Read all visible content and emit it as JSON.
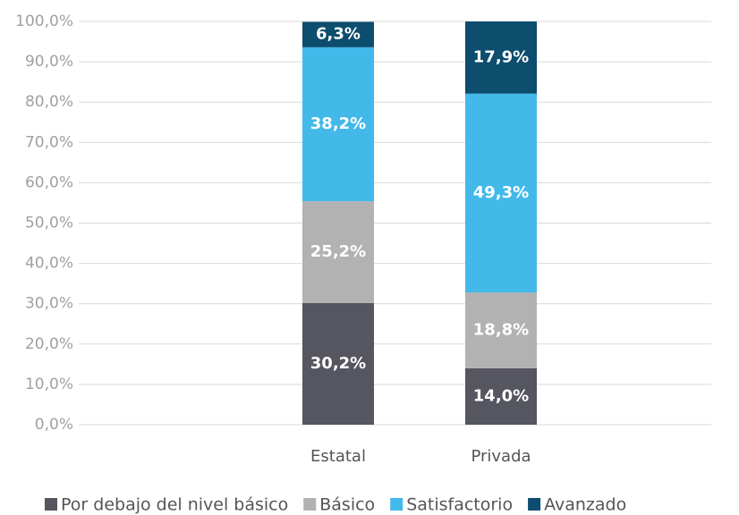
{
  "chart_data": {
    "type": "bar",
    "stacked": true,
    "categories": [
      "Estatal",
      "Privada"
    ],
    "series": [
      {
        "name": "Por debajo del nivel básico",
        "color": "#55565f",
        "values": [
          30.2,
          14.0
        ],
        "value_labels": [
          "30,2%",
          "14,0%"
        ]
      },
      {
        "name": "Básico",
        "color": "#b2b2b2",
        "values": [
          25.2,
          18.8
        ],
        "value_labels": [
          "25,2%",
          "18,8%"
        ]
      },
      {
        "name": "Satisfactorio",
        "color": "#43b9e9",
        "values": [
          38.2,
          49.3
        ],
        "value_labels": [
          "38,2%",
          "49,3%"
        ]
      },
      {
        "name": "Avanzado",
        "color": "#0d4d6e",
        "values": [
          6.3,
          17.9
        ],
        "value_labels": [
          "6,3%",
          "17,9%"
        ]
      }
    ],
    "ylim": [
      0,
      100
    ],
    "yticks": [
      {
        "value": 0,
        "label": "0,0%"
      },
      {
        "value": 10,
        "label": "10,0%"
      },
      {
        "value": 20,
        "label": "20,0%"
      },
      {
        "value": 30,
        "label": "30,0%"
      },
      {
        "value": 40,
        "label": "40,0%"
      },
      {
        "value": 50,
        "label": "50,0%"
      },
      {
        "value": 60,
        "label": "60,0%"
      },
      {
        "value": 70,
        "label": "70,0%"
      },
      {
        "value": 80,
        "label": "80,0%"
      },
      {
        "value": 90,
        "label": "90,0%"
      },
      {
        "value": 100,
        "label": "100,0%"
      }
    ],
    "grid": true,
    "legend": "bottom"
  }
}
